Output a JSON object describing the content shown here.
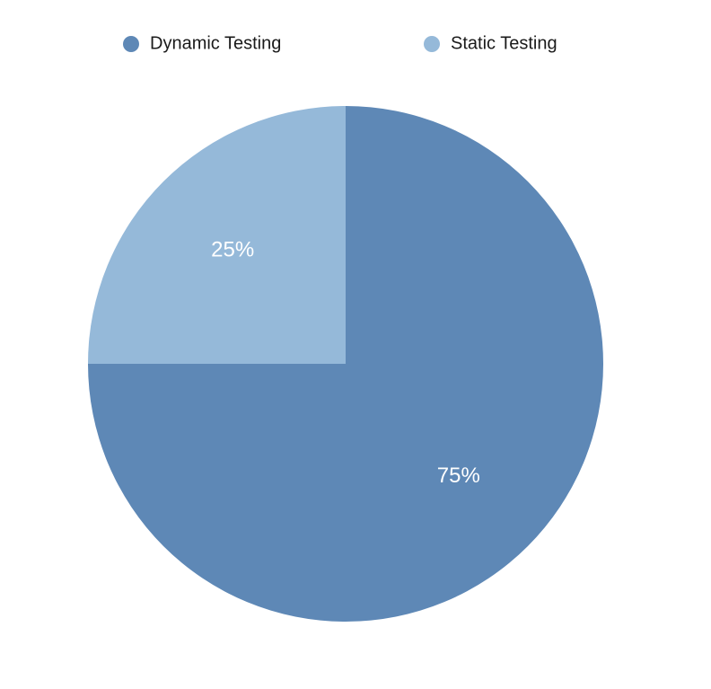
{
  "chart_data": {
    "type": "pie",
    "title": "",
    "legend_position": "top",
    "slices": [
      {
        "name": "Dynamic Testing",
        "value": 75,
        "label": "75%",
        "color": "#5e88b6"
      },
      {
        "name": "Static Testing",
        "value": 25,
        "label": "25%",
        "color": "#95b9d9"
      }
    ]
  }
}
